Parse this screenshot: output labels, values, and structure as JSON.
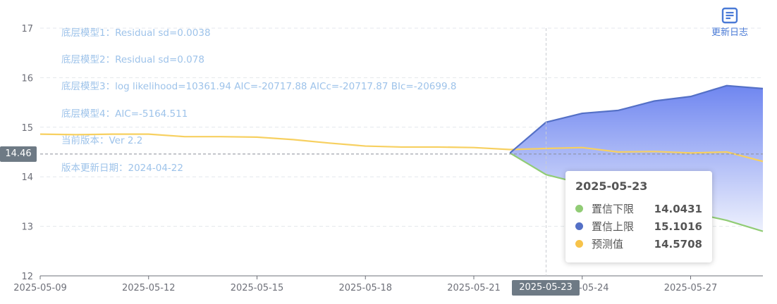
{
  "chart_data": {
    "type": "line",
    "x": [
      "2025-05-09",
      "2025-05-10",
      "2025-05-11",
      "2025-05-12",
      "2025-05-13",
      "2025-05-14",
      "2025-05-15",
      "2025-05-16",
      "2025-05-17",
      "2025-05-18",
      "2025-05-19",
      "2025-05-20",
      "2025-05-21",
      "2025-05-22",
      "2025-05-23",
      "2025-05-24",
      "2025-05-25",
      "2025-05-26",
      "2025-05-27",
      "2025-05-28",
      "2025-05-29"
    ],
    "x_tick_labels": [
      "2025-05-09",
      "2025-05-12",
      "2025-05-15",
      "2025-05-18",
      "2025-05-21",
      "2025-05-24",
      "2025-05-27"
    ],
    "ylim": [
      12,
      17
    ],
    "y_ticks": [
      "12",
      "13",
      "14",
      "15",
      "16",
      "17"
    ],
    "series": [
      {
        "name": "预测值",
        "color": "#f7d060",
        "values": [
          14.86,
          14.85,
          14.86,
          14.86,
          14.81,
          14.81,
          14.8,
          14.75,
          14.68,
          14.62,
          14.6,
          14.6,
          14.59,
          14.55,
          14.5708,
          14.59,
          14.5,
          14.51,
          14.48,
          14.5,
          14.31
        ]
      },
      {
        "name": "置信下限",
        "color": "#91cc75",
        "values": [
          null,
          null,
          null,
          null,
          null,
          null,
          null,
          null,
          null,
          null,
          null,
          null,
          null,
          14.48,
          14.0431,
          13.86,
          13.55,
          13.42,
          13.28,
          13.12,
          12.9
        ]
      },
      {
        "name": "置信上限",
        "color": "#5470c6",
        "values": [
          null,
          null,
          null,
          null,
          null,
          null,
          null,
          null,
          null,
          null,
          null,
          null,
          null,
          14.48,
          15.1016,
          15.28,
          15.34,
          15.53,
          15.62,
          15.84,
          15.78
        ]
      }
    ],
    "grid": true,
    "legend": "none",
    "annotations": [
      "底层模型1：Residual sd=0.0038",
      "底层模型2：Residual sd=0.078",
      "底层模型3：log likelihood=10361.94 AIC=-20717.88 AICc=-20717.87 BIc=-20699.8",
      "底层模型4：AIC=-5164.511",
      "当前版本：Ver 2.2",
      "版本更新日期：2024-04-22"
    ],
    "crosshair": {
      "y_value": "14.46",
      "x_value": "2025-05-23"
    },
    "tooltip": {
      "title": "2025-05-23",
      "rows": [
        {
          "name": "置信下限",
          "value": "14.0431",
          "color": "#91cc75"
        },
        {
          "name": "置信上限",
          "value": "15.1016",
          "color": "#5470c6"
        },
        {
          "name": "预测值",
          "value": "14.5708",
          "color": "#f7c34a"
        }
      ]
    }
  },
  "toolbar": {
    "changelog_label": "更新日志",
    "changelog_icon": "document-icon"
  },
  "colors": {
    "accent": "#4a7ad6",
    "band_top": "#6f86f0",
    "band_bottom": "#eef1fd"
  }
}
